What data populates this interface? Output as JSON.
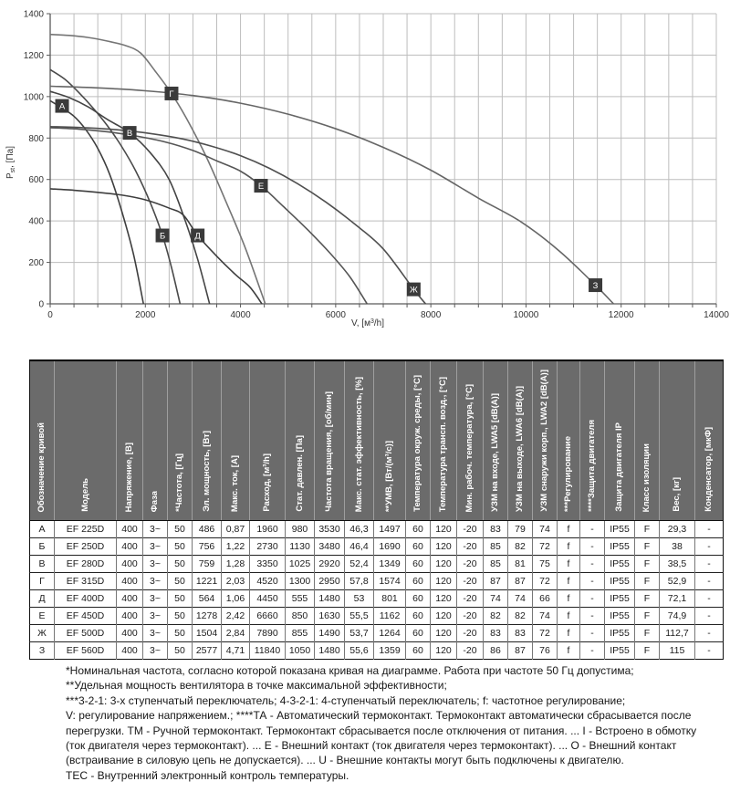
{
  "chart_data": {
    "type": "line",
    "title": "",
    "xlabel": "V, [м³/h]",
    "ylabel": "Pst, [Па]",
    "xlabel_parts": {
      "main": "V, [м",
      "sup": "3",
      "rest": "/h]"
    },
    "ylabel_parts": {
      "main": "P",
      "sub": "st",
      "rest": ", [Па]"
    },
    "xlim": [
      0,
      14000
    ],
    "ylim": [
      0,
      1400
    ],
    "x_minor_step": 500,
    "x_label_step": 2000,
    "y_major_step": 200,
    "grid": true,
    "grid_color": "#bdbdbd",
    "axis_color": "#5a5a5a",
    "tick_text_color": "#333333",
    "label_box_color": "#3a3a3a",
    "label_text_color": "#ffffff",
    "legend_position": "on-curve",
    "series": [
      {
        "name": "А",
        "color": "#3e3e3e",
        "label_at": [
          250,
          955
        ],
        "points": [
          [
            0,
            980
          ],
          [
            250,
            945
          ],
          [
            500,
            905
          ],
          [
            750,
            840
          ],
          [
            1000,
            750
          ],
          [
            1250,
            625
          ],
          [
            1500,
            450
          ],
          [
            1750,
            240
          ],
          [
            1960,
            0
          ]
        ]
      },
      {
        "name": "Б",
        "color": "#4a4a4a",
        "label_at": [
          2360,
          330
        ],
        "points": [
          [
            0,
            1130
          ],
          [
            300,
            1085
          ],
          [
            600,
            1020
          ],
          [
            900,
            945
          ],
          [
            1200,
            860
          ],
          [
            1500,
            760
          ],
          [
            1800,
            640
          ],
          [
            2100,
            490
          ],
          [
            2360,
            330
          ],
          [
            2550,
            175
          ],
          [
            2730,
            0
          ]
        ]
      },
      {
        "name": "В",
        "color": "#444444",
        "label_at": [
          1670,
          825
        ],
        "points": [
          [
            0,
            1025
          ],
          [
            400,
            995
          ],
          [
            800,
            950
          ],
          [
            1200,
            890
          ],
          [
            1670,
            825
          ],
          [
            2100,
            730
          ],
          [
            2500,
            600
          ],
          [
            2840,
            400
          ],
          [
            3100,
            215
          ],
          [
            3350,
            0
          ]
        ]
      },
      {
        "name": "Г",
        "color": "#757575",
        "label_at": [
          2550,
          1015
        ],
        "points": [
          [
            0,
            1300
          ],
          [
            400,
            1295
          ],
          [
            800,
            1285
          ],
          [
            1200,
            1268
          ],
          [
            1600,
            1245
          ],
          [
            1900,
            1210
          ],
          [
            2200,
            1125
          ],
          [
            2550,
            1015
          ],
          [
            2900,
            880
          ],
          [
            3300,
            700
          ],
          [
            3700,
            490
          ],
          [
            4100,
            270
          ],
          [
            4520,
            0
          ]
        ]
      },
      {
        "name": "Д",
        "color": "#3e3e3e",
        "label_at": [
          3100,
          330
        ],
        "points": [
          [
            0,
            555
          ],
          [
            500,
            548
          ],
          [
            1000,
            538
          ],
          [
            1500,
            525
          ],
          [
            2000,
            502
          ],
          [
            2500,
            462
          ],
          [
            2800,
            428
          ],
          [
            3100,
            330
          ],
          [
            3500,
            230
          ],
          [
            3900,
            140
          ],
          [
            4200,
            80
          ],
          [
            4450,
            0
          ]
        ]
      },
      {
        "name": "Е",
        "color": "#555555",
        "label_at": [
          4430,
          570
        ],
        "points": [
          [
            0,
            850
          ],
          [
            600,
            843
          ],
          [
            1200,
            830
          ],
          [
            1800,
            810
          ],
          [
            2400,
            782
          ],
          [
            3000,
            740
          ],
          [
            3500,
            690
          ],
          [
            4000,
            640
          ],
          [
            4430,
            570
          ],
          [
            4900,
            470
          ],
          [
            5400,
            360
          ],
          [
            5900,
            240
          ],
          [
            6300,
            130
          ],
          [
            6660,
            0
          ]
        ]
      },
      {
        "name": "Ж",
        "color": "#4f4f4f",
        "label_at": [
          7640,
          70
        ],
        "points": [
          [
            0,
            855
          ],
          [
            700,
            850
          ],
          [
            1400,
            840
          ],
          [
            2100,
            822
          ],
          [
            2800,
            795
          ],
          [
            3400,
            760
          ],
          [
            4000,
            715
          ],
          [
            4600,
            655
          ],
          [
            5200,
            580
          ],
          [
            5800,
            490
          ],
          [
            6400,
            385
          ],
          [
            7000,
            265
          ],
          [
            7640,
            70
          ],
          [
            7890,
            0
          ]
        ]
      },
      {
        "name": "З",
        "color": "#666666",
        "label_at": [
          11460,
          90
        ],
        "points": [
          [
            0,
            1050
          ],
          [
            1000,
            1042
          ],
          [
            2000,
            1028
          ],
          [
            3000,
            1005
          ],
          [
            4000,
            968
          ],
          [
            5000,
            915
          ],
          [
            6000,
            845
          ],
          [
            7000,
            755
          ],
          [
            8000,
            645
          ],
          [
            9000,
            510
          ],
          [
            9900,
            395
          ],
          [
            10700,
            255
          ],
          [
            11460,
            90
          ],
          [
            11840,
            0
          ]
        ]
      }
    ]
  },
  "table": {
    "header_bg": "#6b6b6b",
    "header_text_color": "#ffffff",
    "columns": [
      "Обозначение кривой",
      "Модель",
      "Напряжение, [В]",
      "Фаза",
      "*Частота, [Гц]",
      "Эл. мощность, [Вт]",
      "Макс. ток, [А]",
      "Расход, [м³/h]",
      "Стат. давлен. [Па]",
      "Частота вращения, [об/мин]",
      "Макс. стат. эффективность, [%]",
      "**УМВ, [Вт/(м³/с)]",
      "Температура окруж. среды, [°C]",
      "Температура трансп. возд., [°C]",
      "Мин. рабоч. температура, [°C]",
      "УЗМ на входе, LWA5 [dB(A)]",
      "УЗМ на выходе, LWA6 [dB(A)]",
      "УЗМ снаружи корп., LWA2 [dB(A)]",
      "***Регулирование",
      "****Защита двигателя",
      "Защита двигателя IP",
      "Класс изоляции",
      "Вес, [кг]",
      "Конденсатор, [мкФ]"
    ],
    "rows": [
      [
        "А",
        "EF 225D",
        "400",
        "3~",
        "50",
        "486",
        "0,87",
        "1960",
        "980",
        "3530",
        "46,3",
        "1497",
        "60",
        "120",
        "-20",
        "83",
        "79",
        "74",
        "f",
        "-",
        "IP55",
        "F",
        "29,3",
        "-"
      ],
      [
        "Б",
        "EF 250D",
        "400",
        "3~",
        "50",
        "756",
        "1,22",
        "2730",
        "1130",
        "3480",
        "46,4",
        "1690",
        "60",
        "120",
        "-20",
        "85",
        "82",
        "72",
        "f",
        "-",
        "IP55",
        "F",
        "38",
        "-"
      ],
      [
        "В",
        "EF 280D",
        "400",
        "3~",
        "50",
        "759",
        "1,28",
        "3350",
        "1025",
        "2920",
        "52,4",
        "1349",
        "60",
        "120",
        "-20",
        "85",
        "81",
        "75",
        "f",
        "-",
        "IP55",
        "F",
        "38,5",
        "-"
      ],
      [
        "Г",
        "EF 315D",
        "400",
        "3~",
        "50",
        "1221",
        "2,03",
        "4520",
        "1300",
        "2950",
        "57,8",
        "1574",
        "60",
        "120",
        "-20",
        "87",
        "87",
        "72",
        "f",
        "-",
        "IP55",
        "F",
        "52,9",
        "-"
      ],
      [
        "Д",
        "EF 400D",
        "400",
        "3~",
        "50",
        "564",
        "1,06",
        "4450",
        "555",
        "1480",
        "53",
        "801",
        "60",
        "120",
        "-20",
        "74",
        "74",
        "66",
        "f",
        "-",
        "IP55",
        "F",
        "72,1",
        "-"
      ],
      [
        "Е",
        "EF 450D",
        "400",
        "3~",
        "50",
        "1278",
        "2,42",
        "6660",
        "850",
        "1630",
        "55,5",
        "1162",
        "60",
        "120",
        "-20",
        "82",
        "82",
        "74",
        "f",
        "-",
        "IP55",
        "F",
        "74,9",
        "-"
      ],
      [
        "Ж",
        "EF 500D",
        "400",
        "3~",
        "50",
        "1504",
        "2,84",
        "7890",
        "855",
        "1490",
        "53,7",
        "1264",
        "60",
        "120",
        "-20",
        "83",
        "83",
        "72",
        "f",
        "-",
        "IP55",
        "F",
        "112,7",
        "-"
      ],
      [
        "З",
        "EF 560D",
        "400",
        "3~",
        "50",
        "2577",
        "4,71",
        "11840",
        "1050",
        "1480",
        "55,6",
        "1359",
        "60",
        "120",
        "-20",
        "86",
        "87",
        "76",
        "f",
        "-",
        "IP55",
        "F",
        "115",
        "-"
      ]
    ]
  },
  "footnotes": {
    "lines": [
      "*Номинальная частота, согласно которой показана кривая на диаграмме. Работа при частоте 50 Гц допустима;",
      "**Удельная мощность вентилятора в точке максимальной эффективности;",
      "***3-2-1: 3-х ступенчатый переключатель; 4-3-2-1: 4-ступенчатый переключатель; f: частотное регулирование;",
      "V: регулирование напряжением.; ****ТА - Автоматический термоконтакт. Термоконтакт автоматически сбрасывается после",
      "перегрузки. ТМ - Ручной термоконтакт. Термоконтакт сбрасывается после отключения от питания. ... I - Встроено в обмотку",
      "(ток двигателя через термоконтакт). ... Е - Внешний контакт (ток двигателя через термоконтакт). ... О - Внешний контакт",
      "(встраивание в силовую цепь не допускается). ... U - Внешние контакты могут быть подключены к двигателю.",
      "ТЕС - Внутренний электронный контроль температуры."
    ]
  }
}
